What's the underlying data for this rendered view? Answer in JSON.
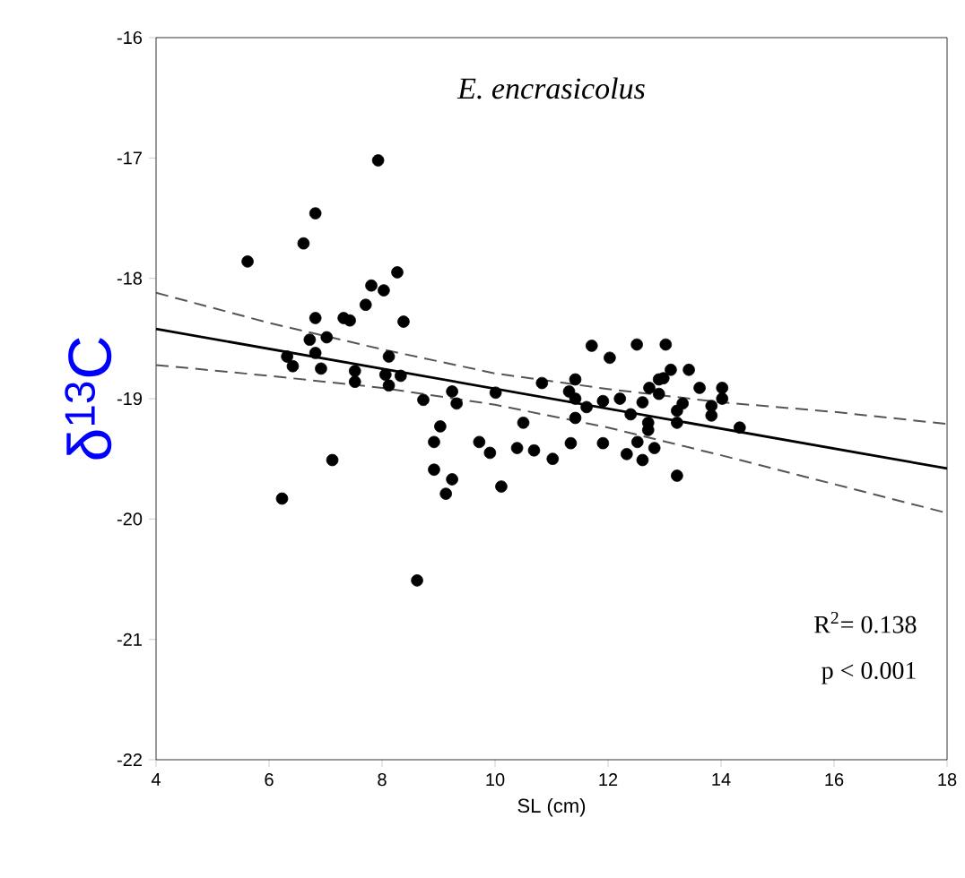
{
  "chart_data": {
    "type": "scatter",
    "ylabel": "δ$^{13}$C",
    "xlabel": "SL (cm)",
    "xlim": [
      4,
      18
    ],
    "ylim": [
      -22,
      -16
    ],
    "xticks": [
      4,
      6,
      8,
      10,
      12,
      14,
      16,
      18
    ],
    "yticks": [
      -22,
      -21,
      -20,
      -19,
      -18,
      -17,
      -16
    ],
    "grid": false,
    "annotations": [
      "E. encrasicolus",
      "R$^{2}$= 0.138",
      "p  < 0.001"
    ],
    "series": [
      {
        "type": "scatter",
        "marker": "circle",
        "color": "#000000",
        "x": [
          7.93,
          6.82,
          6.61,
          5.62,
          8.27,
          7.81,
          8.03,
          7.71,
          8.38,
          6.82,
          7.32,
          7.43,
          6.72,
          7.02,
          6.32,
          6.42,
          6.82,
          6.92,
          7.52,
          7.52,
          8.12,
          8.06,
          8.33,
          8.12,
          8.73,
          9.24,
          9.32,
          10.01,
          9.03,
          8.92,
          9.72,
          9.91,
          10.5,
          10.39,
          10.69,
          7.12,
          8.92,
          9.24,
          9.13,
          10.11,
          6.23,
          8.62,
          11.71,
          12.03,
          12.51,
          13.02,
          10.83,
          11.42,
          11.31,
          11.42,
          11.02,
          11.62,
          11.91,
          12.21,
          11.42,
          11.34,
          11.91,
          12.4,
          12.61,
          12.73,
          12.9,
          12.98,
          13.11,
          13.43,
          13.62,
          12.9,
          12.71,
          12.71,
          12.52,
          12.33,
          12.61,
          12.82,
          13.22,
          13.32,
          13.22,
          13.22,
          13.83,
          13.83,
          14.02,
          14.02,
          14.33
        ],
        "values": [
          -17.02,
          -17.46,
          -17.71,
          -17.86,
          -17.95,
          -18.06,
          -18.1,
          -18.22,
          -18.36,
          -18.33,
          -18.33,
          -18.35,
          -18.51,
          -18.49,
          -18.65,
          -18.73,
          -18.62,
          -18.75,
          -18.77,
          -18.86,
          -18.65,
          -18.8,
          -18.81,
          -18.89,
          -19.01,
          -18.94,
          -19.04,
          -18.95,
          -19.23,
          -19.36,
          -19.36,
          -19.45,
          -19.2,
          -19.41,
          -19.43,
          -19.51,
          -19.59,
          -19.67,
          -19.79,
          -19.73,
          -19.83,
          -20.51,
          -18.56,
          -18.66,
          -18.55,
          -18.55,
          -18.87,
          -18.84,
          -18.94,
          -19.0,
          -19.5,
          -19.07,
          -19.02,
          -19.0,
          -19.16,
          -19.37,
          -19.37,
          -19.13,
          -19.03,
          -18.91,
          -18.84,
          -18.83,
          -18.76,
          -18.76,
          -18.91,
          -18.96,
          -19.2,
          -19.26,
          -19.36,
          -19.46,
          -19.51,
          -19.41,
          -19.1,
          -19.04,
          -19.2,
          -19.64,
          -19.06,
          -19.14,
          -18.91,
          -19.0,
          -19.24
        ]
      },
      {
        "type": "line",
        "marker": "none",
        "color": "#000000",
        "line_style": "solid",
        "x": [
          4,
          18
        ],
        "values": [
          -18.42,
          -19.58
        ]
      },
      {
        "type": "line",
        "marker": "none",
        "color": "#555555",
        "line_style": "dashed",
        "x": [
          4,
          6,
          8,
          10,
          12,
          14,
          16,
          18
        ],
        "values": [
          -18.12,
          -18.37,
          -18.59,
          -18.79,
          -18.92,
          -19.03,
          -19.11,
          -19.21
        ]
      },
      {
        "type": "line",
        "marker": "none",
        "color": "#555555",
        "line_style": "dashed",
        "x": [
          4,
          6,
          8,
          10,
          12,
          14,
          16,
          18
        ],
        "values": [
          -18.72,
          -18.81,
          -18.91,
          -19.05,
          -19.24,
          -19.47,
          -19.71,
          -19.95
        ]
      }
    ]
  }
}
